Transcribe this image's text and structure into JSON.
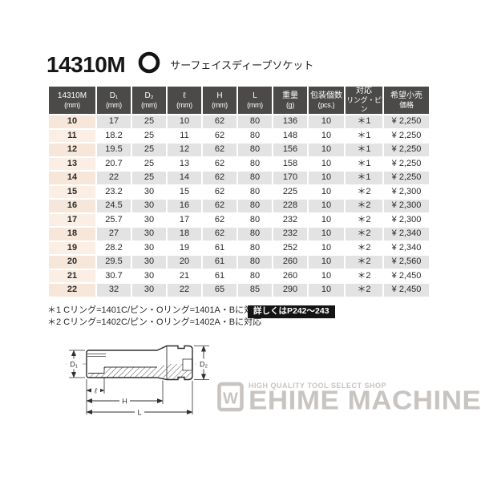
{
  "title": {
    "model": "14310M",
    "subtitle": "サーフェイスディープソケット"
  },
  "table": {
    "columns": [
      {
        "label": "14310M",
        "sub": "(mm)"
      },
      {
        "label": "D₁",
        "sub": "(mm)"
      },
      {
        "label": "D₂",
        "sub": "(mm)"
      },
      {
        "label": "ℓ",
        "sub": "(mm)"
      },
      {
        "label": "H",
        "sub": "(mm)"
      },
      {
        "label": "L",
        "sub": "(mm)"
      },
      {
        "label": "重量",
        "sub": "(g)"
      },
      {
        "label": "包装個数",
        "sub": "(pcs.)"
      },
      {
        "label": "対応",
        "sub": "リング・ピン"
      },
      {
        "label": "希望小売",
        "sub": "価格"
      }
    ],
    "rows": [
      [
        "10",
        "17",
        "25",
        "10",
        "62",
        "80",
        "136",
        "10",
        "＊1",
        "¥ 2,250"
      ],
      [
        "11",
        "18.2",
        "25",
        "11",
        "62",
        "80",
        "148",
        "10",
        "＊1",
        "¥ 2,250"
      ],
      [
        "12",
        "19.5",
        "25",
        "12",
        "62",
        "80",
        "156",
        "10",
        "＊1",
        "¥ 2,250"
      ],
      [
        "13",
        "20.7",
        "25",
        "13",
        "62",
        "80",
        "158",
        "10",
        "＊1",
        "¥ 2,250"
      ],
      [
        "14",
        "22",
        "25",
        "14",
        "62",
        "80",
        "170",
        "10",
        "＊1",
        "¥ 2,250"
      ],
      [
        "15",
        "23.2",
        "30",
        "15",
        "62",
        "80",
        "225",
        "10",
        "＊2",
        "¥ 2,300"
      ],
      [
        "16",
        "24.5",
        "30",
        "16",
        "62",
        "80",
        "228",
        "10",
        "＊2",
        "¥ 2,300"
      ],
      [
        "17",
        "25.7",
        "30",
        "17",
        "62",
        "80",
        "232",
        "10",
        "＊2",
        "¥ 2,300"
      ],
      [
        "18",
        "27",
        "30",
        "18",
        "62",
        "80",
        "232",
        "10",
        "＊2",
        "¥ 2,340"
      ],
      [
        "19",
        "28.2",
        "30",
        "19",
        "61",
        "80",
        "252",
        "10",
        "＊2",
        "¥ 2,340"
      ],
      [
        "20",
        "29.5",
        "30",
        "20",
        "61",
        "80",
        "260",
        "10",
        "＊2",
        "¥ 2,560"
      ],
      [
        "21",
        "30.7",
        "30",
        "21",
        "61",
        "80",
        "260",
        "10",
        "＊2",
        "¥ 2,450"
      ],
      [
        "22",
        "32",
        "30",
        "22",
        "65",
        "85",
        "290",
        "10",
        "＊2",
        "¥ 2,450"
      ]
    ]
  },
  "notes": {
    "note1": "＊1 Cリング=1401C/ピン・Oリング=1401A・Bに対応",
    "note2": "＊2 Cリング=1402C/ピン・Oリング=1402A・Bに対応",
    "badge": "詳しくはP242～243"
  },
  "diagram": {
    "labels": {
      "d1": "D₁",
      "d2": "D₂",
      "l_small": "ℓ",
      "h": "H",
      "l": "L"
    }
  },
  "watermark": {
    "tagline": "HIGH QUALITY TOOL SELECT SHOP",
    "name": "EHIME MACHINE",
    "mark_letter": "W"
  },
  "colors": {
    "header_bg": "#4b4a49",
    "row_gray": "#e3e3e3",
    "row_white": "#ffffff",
    "size_col_dark": "#f6e7da",
    "size_col_light": "#fbeee5",
    "badge_bg": "#141414",
    "watermark_gray": "#c7c4c1"
  }
}
